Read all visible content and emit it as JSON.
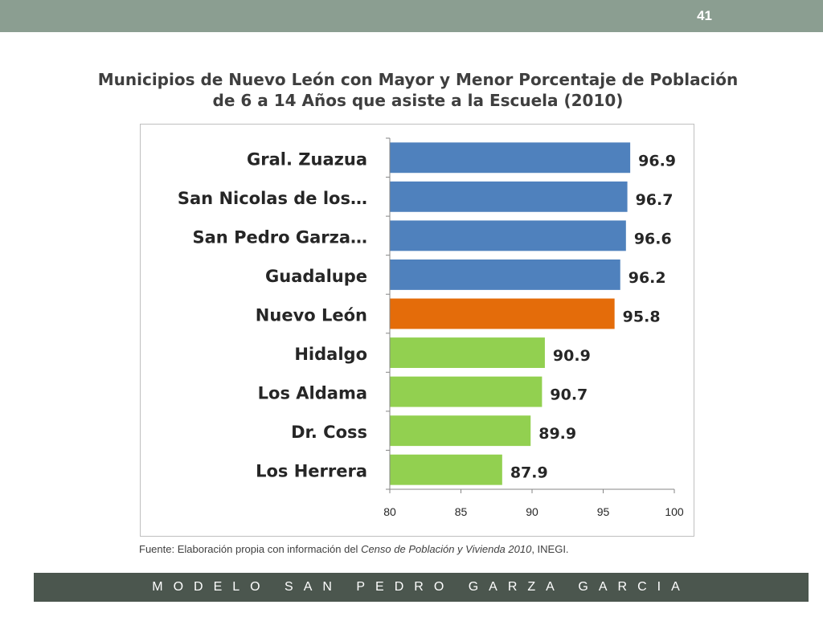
{
  "header": {
    "page_number": "41"
  },
  "title": {
    "line1": "Municipios de Nuevo León con Mayor y Menor Porcentaje de Población",
    "line2": "de 6 a 14 Años que asiste a la Escuela (2010)"
  },
  "source": {
    "prefix": "Fuente: Elaboración propia con información del ",
    "italic": "Censo de Población y Vivienda  2010",
    "suffix": ", INEGI."
  },
  "footer": {
    "text": "MODELO SAN PEDRO GARZA GARCIA"
  },
  "chart_data": {
    "type": "bar",
    "orientation": "horizontal",
    "categories": [
      "Gral. Zuazua",
      "San Nicolas de los…",
      "San Pedro Garza…",
      "Guadalupe",
      "Nuevo León",
      "Hidalgo",
      "Los Aldama",
      "Dr. Coss",
      "Los Herrera"
    ],
    "values": [
      96.9,
      96.7,
      96.6,
      96.2,
      95.8,
      90.9,
      90.7,
      89.9,
      87.9
    ],
    "bar_colors": [
      "#4f81bd",
      "#4f81bd",
      "#4f81bd",
      "#4f81bd",
      "#e46c0a",
      "#92d050",
      "#92d050",
      "#92d050",
      "#92d050"
    ],
    "xlim": [
      80,
      100
    ],
    "xticks": [
      80,
      85,
      90,
      95,
      100
    ],
    "grid": false,
    "legend": "none"
  }
}
